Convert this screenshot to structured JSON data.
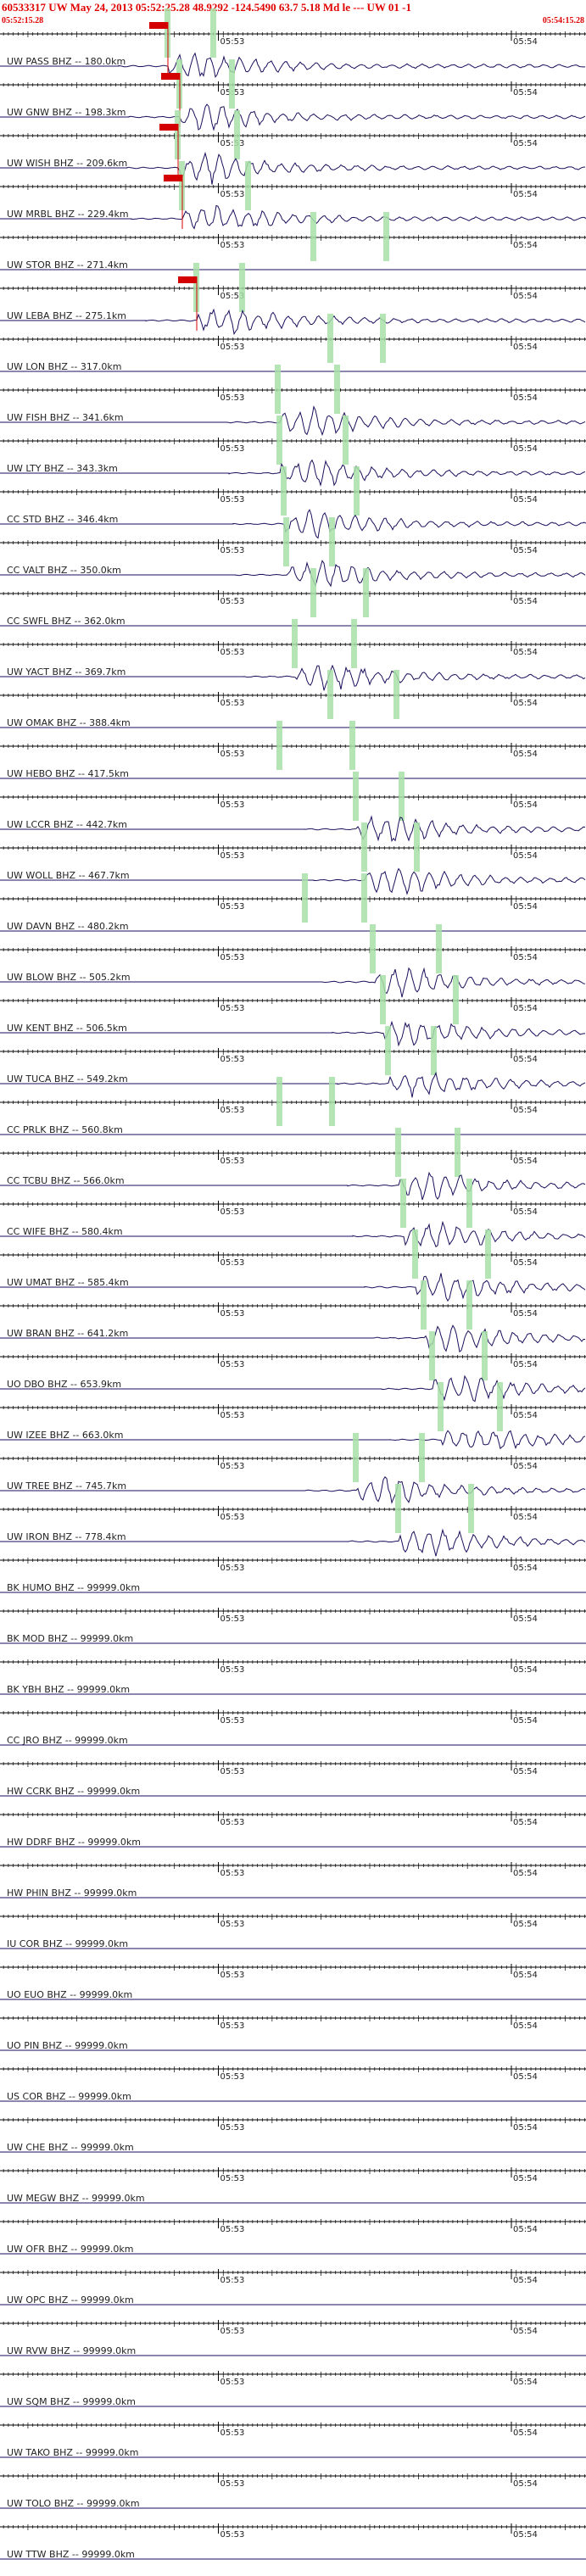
{
  "header": {
    "title": "60533317 UW May 24, 2013 05:52:25.28   48.9292 -124.5490 63.7 5.18 Md le --- UW 01  -1",
    "start_time": "05:52:15.28",
    "end_time": "05:54:15.28"
  },
  "colors": {
    "title": "#e00000",
    "trace": "#1a0f5c",
    "pick": "#a8e0a8",
    "marker": "#d40000",
    "axis": "#000000"
  },
  "chart_data": {
    "type": "line",
    "x_unit": "UTC time",
    "x_range": [
      "05:52:15.28",
      "05:54:15.28"
    ],
    "tick_labels": [
      "05:53",
      "05:54"
    ],
    "traces": [
      {
        "label": "UW PASS BHZ -- 180.0km",
        "active": true,
        "marker": true
      },
      {
        "label": "UW GNW BHZ -- 198.3km",
        "active": true,
        "marker": true
      },
      {
        "label": "UW WISH BHZ -- 209.6km",
        "active": true,
        "marker": true
      },
      {
        "label": "UW MRBL BHZ -- 229.4km",
        "active": true,
        "marker": true
      },
      {
        "label": "UW STOR BHZ -- 271.4km",
        "active": false,
        "marker": false
      },
      {
        "label": "UW LEBA BHZ -- 275.1km",
        "active": true,
        "marker": true
      },
      {
        "label": "UW LON BHZ -- 317.0km",
        "active": false,
        "marker": false
      },
      {
        "label": "UW FISH BHZ -- 341.6km",
        "active": true,
        "marker": false
      },
      {
        "label": "UW LTY BHZ -- 343.3km",
        "active": true,
        "marker": false
      },
      {
        "label": "CC STD BHZ -- 346.4km",
        "active": true,
        "marker": false
      },
      {
        "label": "CC VALT BHZ -- 350.0km",
        "active": true,
        "marker": false
      },
      {
        "label": "CC SWFL BHZ -- 362.0km",
        "active": false,
        "marker": false
      },
      {
        "label": "UW YACT BHZ -- 369.7km",
        "active": true,
        "marker": false
      },
      {
        "label": "UW OMAK BHZ -- 388.4km",
        "active": false,
        "marker": false
      },
      {
        "label": "UW HEBO BHZ -- 417.5km",
        "active": false,
        "marker": false
      },
      {
        "label": "UW LCCR BHZ -- 442.7km",
        "active": true,
        "marker": false
      },
      {
        "label": "UW WOLL BHZ -- 467.7km",
        "active": true,
        "marker": false
      },
      {
        "label": "UW DAVN BHZ -- 480.2km",
        "active": false,
        "marker": false
      },
      {
        "label": "UW BLOW BHZ -- 505.2km",
        "active": true,
        "marker": false
      },
      {
        "label": "UW KENT BHZ -- 506.5km",
        "active": true,
        "marker": false
      },
      {
        "label": "UW TUCA BHZ -- 549.2km",
        "active": true,
        "marker": false
      },
      {
        "label": "CC PRLK BHZ -- 560.8km",
        "active": false,
        "marker": false
      },
      {
        "label": "CC TCBU BHZ -- 566.0km",
        "active": true,
        "marker": false
      },
      {
        "label": "CC WIFE BHZ -- 580.4km",
        "active": true,
        "marker": false
      },
      {
        "label": "UW UMAT BHZ -- 585.4km",
        "active": true,
        "marker": false
      },
      {
        "label": "UW BRAN BHZ -- 641.2km",
        "active": true,
        "marker": false
      },
      {
        "label": "UO DBO BHZ -- 653.9km",
        "active": true,
        "marker": false
      },
      {
        "label": "UW IZEE BHZ -- 663.0km",
        "active": true,
        "marker": false
      },
      {
        "label": "UW TREE BHZ -- 745.7km",
        "active": true,
        "marker": false
      },
      {
        "label": "UW IRON BHZ -- 778.4km",
        "active": true,
        "marker": false
      },
      {
        "label": "BK HUMO BHZ -- 99999.0km",
        "active": false,
        "marker": false
      },
      {
        "label": "BK MOD BHZ -- 99999.0km",
        "active": false,
        "marker": false
      },
      {
        "label": "BK YBH BHZ -- 99999.0km",
        "active": false,
        "marker": false
      },
      {
        "label": "CC JRO BHZ -- 99999.0km",
        "active": false,
        "marker": false
      },
      {
        "label": "HW CCRK BHZ -- 99999.0km",
        "active": false,
        "marker": false
      },
      {
        "label": "HW DDRF BHZ -- 99999.0km",
        "active": false,
        "marker": false
      },
      {
        "label": "HW PHIN BHZ -- 99999.0km",
        "active": false,
        "marker": false
      },
      {
        "label": "IU COR BHZ -- 99999.0km",
        "active": false,
        "marker": false
      },
      {
        "label": "UO EUO BHZ -- 99999.0km",
        "active": false,
        "marker": false
      },
      {
        "label": "UO PIN BHZ -- 99999.0km",
        "active": false,
        "marker": false
      },
      {
        "label": "US COR BHZ -- 99999.0km",
        "active": false,
        "marker": false
      },
      {
        "label": "UW CHE BHZ -- 99999.0km",
        "active": false,
        "marker": false
      },
      {
        "label": "UW MEGW BHZ -- 99999.0km",
        "active": false,
        "marker": false
      },
      {
        "label": "UW OFR BHZ -- 99999.0km",
        "active": false,
        "marker": false
      },
      {
        "label": "UW OPC BHZ -- 99999.0km",
        "active": false,
        "marker": false
      },
      {
        "label": "UW RVW BHZ -- 99999.0km",
        "active": false,
        "marker": false
      },
      {
        "label": "UW SQM BHZ -- 99999.0km",
        "active": false,
        "marker": false
      },
      {
        "label": "UW TAKO BHZ -- 99999.0km",
        "active": false,
        "marker": false
      },
      {
        "label": "UW TOLO BHZ -- 99999.0km",
        "active": false,
        "marker": false
      },
      {
        "label": "UW TTW BHZ -- 99999.0km",
        "active": false,
        "marker": false
      }
    ]
  }
}
